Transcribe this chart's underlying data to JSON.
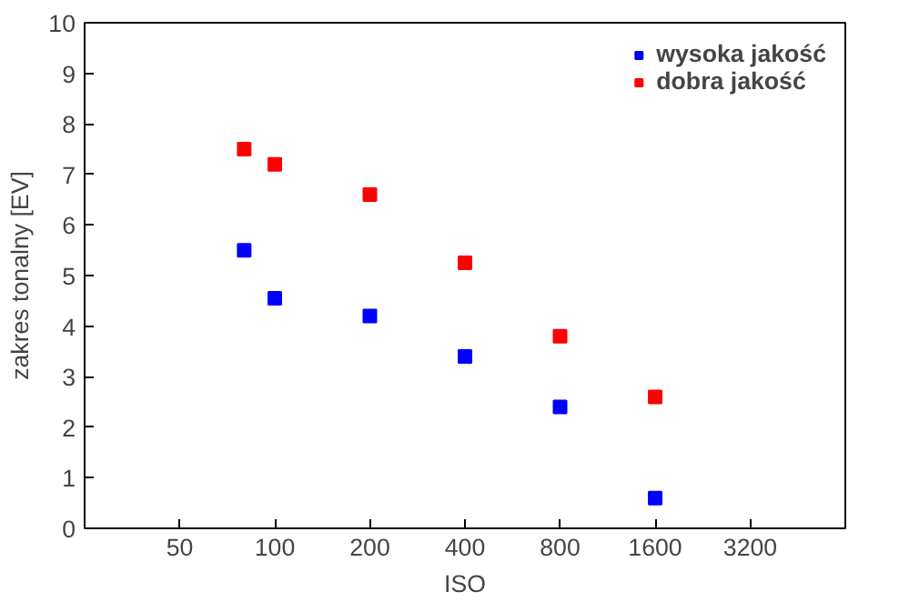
{
  "chart_data": {
    "type": "scatter",
    "xlabel": "ISO",
    "ylabel": "zakres tonalny [EV]",
    "log": "x",
    "x": [
      80,
      100,
      200,
      400,
      800,
      1600
    ],
    "series": [
      {
        "name": "wysoka jakość",
        "color": "#0000ff",
        "values": [
          5.5,
          4.55,
          4.2,
          3.4,
          2.4,
          0.6
        ]
      },
      {
        "name": "dobra jakość",
        "color": "#ff0000",
        "values": [
          7.5,
          7.2,
          6.6,
          5.25,
          3.8,
          2.6
        ]
      }
    ],
    "xlim": [
      25,
      6400
    ],
    "xticks": [
      50,
      100,
      200,
      400,
      800,
      1600,
      3200
    ],
    "ylim": [
      0,
      10
    ],
    "yticks": [
      0,
      1,
      2,
      3,
      4,
      5,
      6,
      7,
      8,
      9,
      10
    ],
    "grid": false,
    "legend": "top right",
    "marker": "square"
  }
}
